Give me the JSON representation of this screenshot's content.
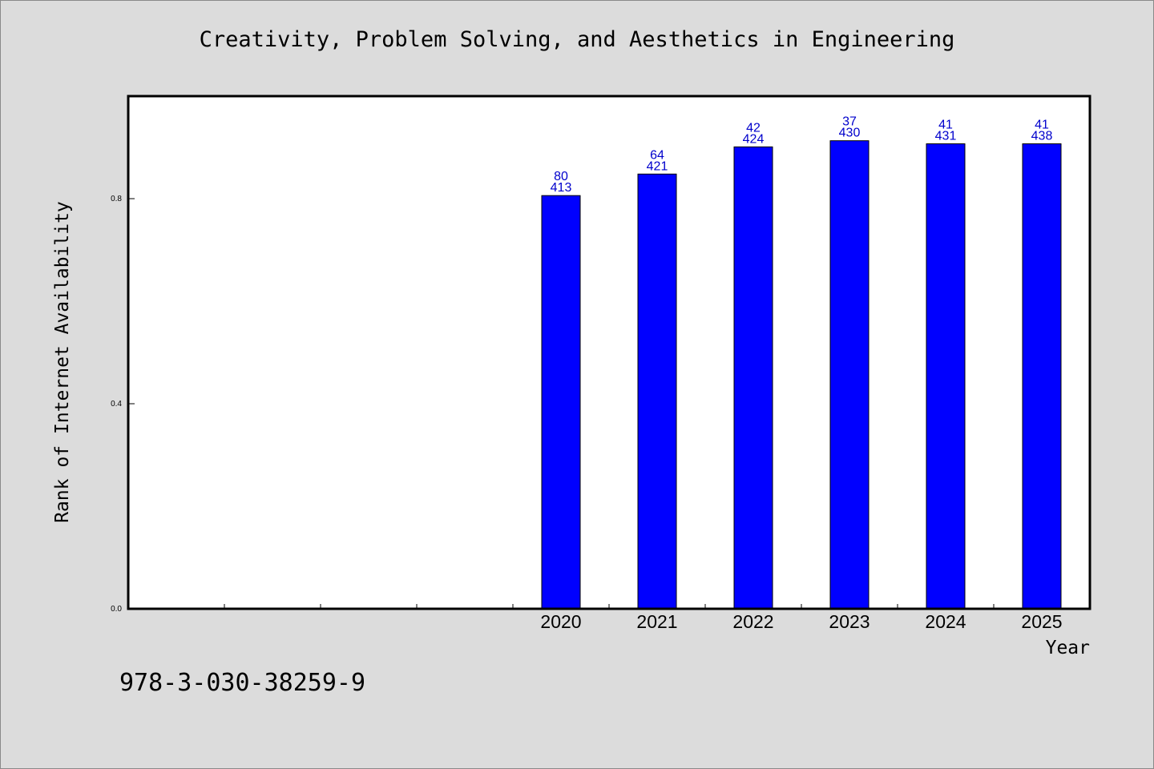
{
  "chart_data": {
    "type": "bar",
    "title": "Creativity, Problem Solving, and Aesthetics in Engineering",
    "xlabel": "Year",
    "ylabel": "Rank of Internet Availability",
    "categories": [
      "",
      "",
      "",
      "",
      "2020",
      "2021",
      "2022",
      "2023",
      "2024",
      "2025"
    ],
    "values": [
      null,
      null,
      null,
      null,
      0.806,
      0.848,
      0.901,
      0.913,
      0.907,
      0.907
    ],
    "bar_labels_top": [
      "",
      "",
      "",
      "",
      "80",
      "64",
      "42",
      "37",
      "41",
      "41"
    ],
    "bar_labels_bottom": [
      "",
      "",
      "",
      "",
      "413",
      "421",
      "424",
      "430",
      "431",
      "438"
    ],
    "y_ticks": [
      0.0,
      0.4,
      0.8
    ],
    "y_tick_labels": [
      "0.0",
      "0.4",
      "0.8"
    ],
    "ylim": [
      0,
      1.0
    ],
    "grid": false,
    "bar_color": "#0000ff",
    "label_color": "#0000cc",
    "frame_color": "#000000",
    "plot_background": "#ffffff",
    "page_background": "#dcdcdc"
  },
  "footer": {
    "isbn": "978-3-030-38259-9"
  }
}
